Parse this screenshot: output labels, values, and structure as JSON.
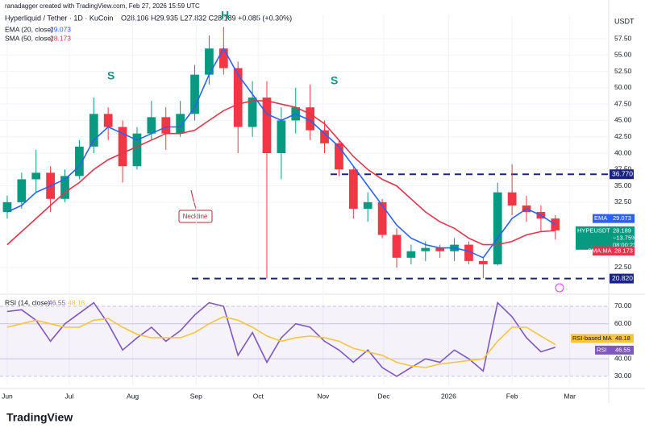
{
  "header": {
    "credit": "ranadagger created with TradingView.com, Feb 27, 2026 15:59 UTC",
    "symbol": "Hyperliquid / Tether · 1D · KuCoin",
    "ohlc": "O28.106 H29.935 L27.832 C28.189 +0.085 (+0.30%)",
    "currency": "USDT",
    "logo": "TradingView"
  },
  "chart_data": {
    "type": "candlestick",
    "open": [
      31,
      32.5,
      36,
      37,
      33,
      36.5,
      41,
      46,
      44,
      38,
      43,
      45.5,
      43,
      46,
      52,
      56,
      53,
      44,
      48.5,
      40,
      45,
      47,
      43.5,
      41.5,
      37.5,
      31.5,
      32.5,
      27.5,
      24,
      25,
      25.5,
      25,
      26,
      23.5,
      23,
      34,
      32,
      31,
      30
    ],
    "high": [
      33.5,
      37,
      40.5,
      38,
      37.5,
      42,
      48.5,
      47,
      45,
      44,
      48,
      47,
      48,
      53.5,
      58,
      59.3,
      54,
      51,
      51,
      47,
      50,
      50.5,
      45,
      42,
      38,
      34,
      33,
      28.5,
      26,
      26.5,
      26,
      27,
      26.5,
      24,
      35.5,
      38.3,
      33.5,
      32,
      30.5
    ],
    "low": [
      30,
      31.5,
      34,
      31,
      32.5,
      36,
      40,
      42,
      35.5,
      37.5,
      42,
      40.5,
      42.5,
      45,
      50.5,
      52,
      40,
      42.5,
      20.8,
      36,
      43,
      42,
      40,
      36.5,
      30,
      29.5,
      27,
      22.5,
      23,
      23.5,
      24,
      23.5,
      23,
      20.9,
      22.8,
      30.5,
      29.5,
      28,
      26.8
    ],
    "close": [
      32.5,
      36,
      37,
      33,
      36.5,
      41,
      46,
      44,
      38,
      43,
      45.5,
      43,
      46,
      52,
      56,
      53,
      44,
      48.5,
      40,
      45,
      47,
      43.5,
      41.5,
      37.5,
      31.5,
      32.5,
      27.5,
      24,
      25,
      25.5,
      25,
      26,
      23.5,
      23,
      34,
      32,
      31,
      30,
      28.189
    ],
    "up_color": "#089981",
    "down_color": "#f23645",
    "series": [
      {
        "name": "EMA (20, close)",
        "tag": "EMA",
        "color": "#2962ff",
        "values": [
          31,
          32,
          34,
          35,
          36,
          38,
          42,
          44,
          43,
          42,
          43,
          44,
          44,
          47,
          52,
          56,
          52,
          49,
          46,
          45,
          46,
          45,
          43,
          41,
          38,
          35,
          32,
          29,
          27,
          26,
          25.5,
          25.5,
          25,
          24,
          27,
          30,
          31.5,
          30.5,
          29.073
        ]
      },
      {
        "name": "SMA (50, close)",
        "tag": "SMA:MA",
        "color": "#e0364a",
        "values": [
          26,
          28,
          30,
          32,
          34,
          35.5,
          37.5,
          39,
          40,
          41,
          42,
          43,
          43,
          43.5,
          45,
          46.5,
          47.5,
          48,
          48,
          47.5,
          47,
          46,
          44.5,
          42,
          39.5,
          37.5,
          36,
          35,
          33,
          31,
          29.5,
          28.5,
          27,
          26,
          26,
          26.5,
          27.5,
          28,
          28.173
        ]
      }
    ],
    "close_tag": {
      "name": "HYPEUSDT",
      "change": "−13.75%",
      "countdown": "08:00:23"
    },
    "ylim": [
      18.8,
      61.2
    ],
    "yticks": [
      {
        "value": 22.5,
        "label": "22.50"
      },
      {
        "value": 32.5,
        "label": "32.50"
      },
      {
        "value": 35,
        "label": "35.00"
      },
      {
        "value": 37.5,
        "label": "37.50"
      },
      {
        "value": 40,
        "label": "40.00"
      },
      {
        "value": 42.5,
        "label": "42.50"
      },
      {
        "value": 45,
        "label": "45.00"
      },
      {
        "value": 47.5,
        "label": "47.50"
      },
      {
        "value": 50,
        "label": "50.00"
      },
      {
        "value": 52.5,
        "label": "52.50"
      },
      {
        "value": 55,
        "label": "55.00"
      },
      {
        "value": 57.5,
        "label": "57.50"
      }
    ],
    "levels": [
      {
        "value": 36.77,
        "label": "36.770"
      },
      {
        "value": 20.82,
        "label": "20.820"
      }
    ],
    "annotations": [
      "S",
      "H",
      "S",
      "Neckline"
    ],
    "xlim": [
      -0.5,
      41.7
    ],
    "xticks": [
      {
        "value": 0,
        "label": "Jun"
      },
      {
        "value": 4.3,
        "label": "Jul"
      },
      {
        "value": 8.7,
        "label": "Aug"
      },
      {
        "value": 13.1,
        "label": "Sep"
      },
      {
        "value": 17.4,
        "label": "Oct"
      },
      {
        "value": 21.9,
        "label": "Nov"
      },
      {
        "value": 26.1,
        "label": "Dec"
      },
      {
        "value": 30.6,
        "label": "2026"
      },
      {
        "value": 35,
        "label": "Feb"
      },
      {
        "value": 39,
        "label": "Mar"
      }
    ],
    "rsi": {
      "ylim": [
        24.9,
        75.5
      ],
      "yticks": [
        {
          "value": 30,
          "label": "30.00"
        },
        {
          "value": 40,
          "label": "40.00"
        },
        {
          "value": 60,
          "label": "60.00"
        },
        {
          "value": 70,
          "label": "70.00"
        }
      ],
      "series": [
        {
          "name": "RSI (14, close)",
          "tag": "RSI",
          "color": "#7e57c2",
          "values": [
            67,
            68,
            62,
            50,
            60,
            66,
            72,
            60,
            45,
            52,
            58,
            50,
            56,
            65,
            72,
            70,
            42,
            55,
            38,
            52,
            60,
            58,
            50,
            45,
            38,
            45,
            35,
            30,
            35,
            40,
            38,
            45,
            40,
            33,
            72,
            64,
            52,
            44,
            46.55
          ]
        },
        {
          "name": "RSI-based MA",
          "tag": "RSI-based MA",
          "color": "#f5c542",
          "values": [
            58,
            60,
            62,
            60,
            58,
            58,
            62,
            63,
            58,
            54,
            52,
            52,
            52,
            55,
            60,
            64,
            62,
            58,
            53,
            50,
            52,
            53,
            52,
            50,
            46,
            44,
            42,
            38,
            36,
            35,
            37,
            38,
            39,
            40,
            50,
            58,
            58,
            53,
            48.18
          ]
        }
      ]
    }
  }
}
